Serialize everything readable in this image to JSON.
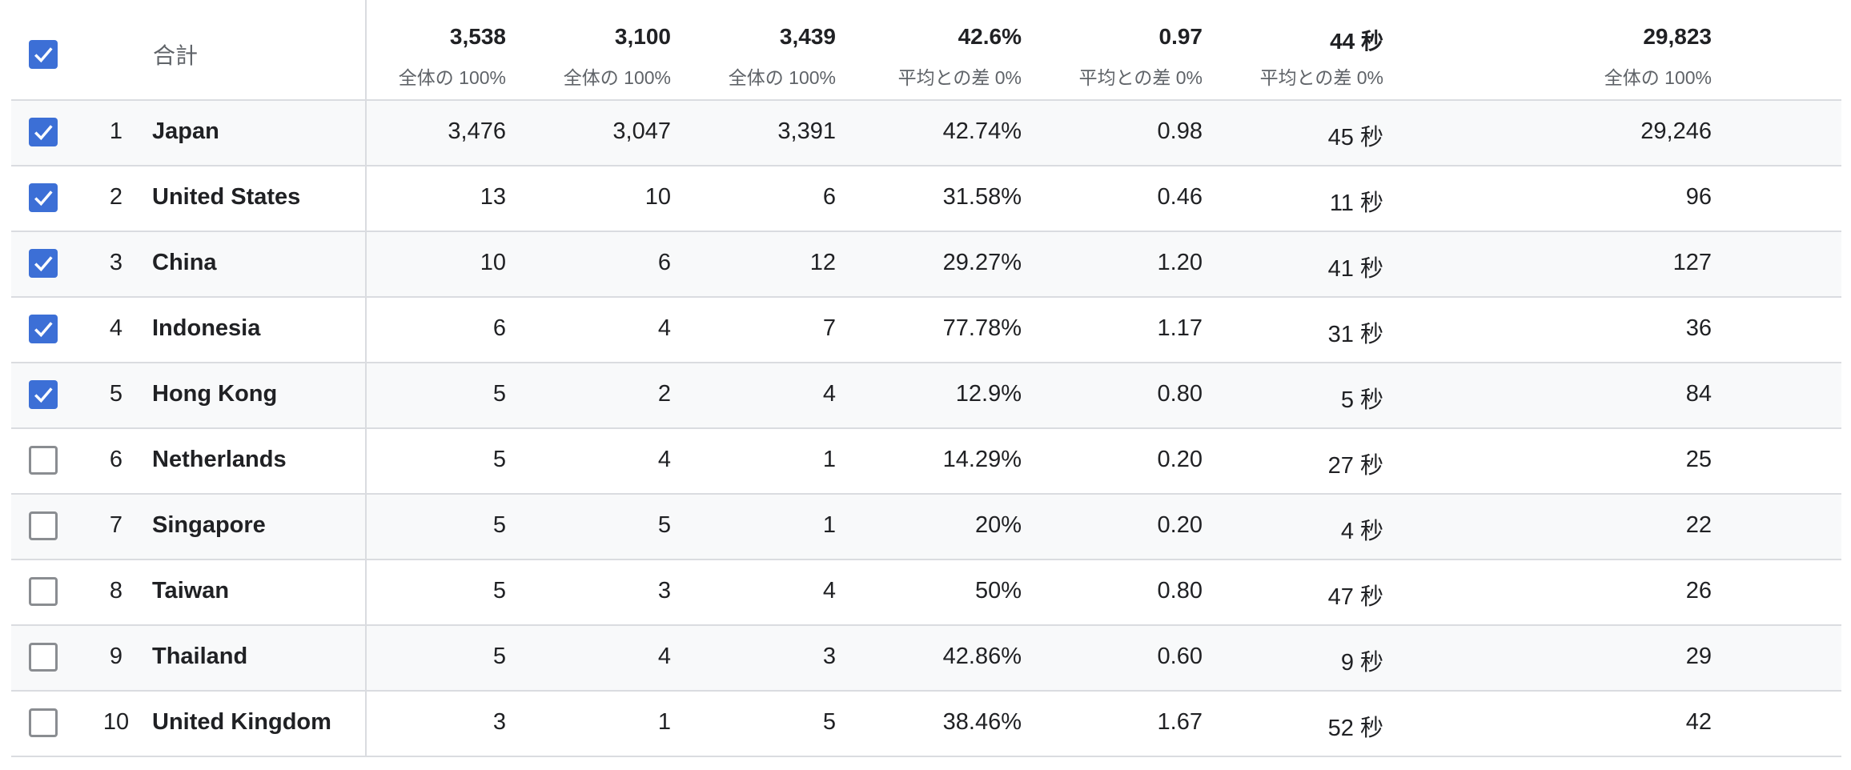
{
  "header": {
    "label": "合計",
    "checked": true,
    "columns": [
      {
        "value": "3,538",
        "sub": "全体の 100%"
      },
      {
        "value": "3,100",
        "sub": "全体の 100%"
      },
      {
        "value": "3,439",
        "sub": "全体の 100%"
      },
      {
        "value": "42.6%",
        "sub": "平均との差 0%"
      },
      {
        "value": "0.97",
        "sub": "平均との差 0%"
      },
      {
        "value": "44 秒",
        "sub": "平均との差 0%"
      },
      {
        "value": "29,823",
        "sub": "全体の 100%"
      }
    ]
  },
  "rows": [
    {
      "rank": "1",
      "country": "Japan",
      "checked": true,
      "values": [
        "3,476",
        "3,047",
        "3,391",
        "42.74%",
        "0.98",
        "45 秒",
        "29,246"
      ]
    },
    {
      "rank": "2",
      "country": "United States",
      "checked": true,
      "values": [
        "13",
        "10",
        "6",
        "31.58%",
        "0.46",
        "11 秒",
        "96"
      ]
    },
    {
      "rank": "3",
      "country": "China",
      "checked": true,
      "values": [
        "10",
        "6",
        "12",
        "29.27%",
        "1.20",
        "41 秒",
        "127"
      ]
    },
    {
      "rank": "4",
      "country": "Indonesia",
      "checked": true,
      "values": [
        "6",
        "4",
        "7",
        "77.78%",
        "1.17",
        "31 秒",
        "36"
      ]
    },
    {
      "rank": "5",
      "country": "Hong Kong",
      "checked": true,
      "values": [
        "5",
        "2",
        "4",
        "12.9%",
        "0.80",
        "5 秒",
        "84"
      ]
    },
    {
      "rank": "6",
      "country": "Netherlands",
      "checked": false,
      "values": [
        "5",
        "4",
        "1",
        "14.29%",
        "0.20",
        "27 秒",
        "25"
      ]
    },
    {
      "rank": "7",
      "country": "Singapore",
      "checked": false,
      "values": [
        "5",
        "5",
        "1",
        "20%",
        "0.20",
        "4 秒",
        "22"
      ]
    },
    {
      "rank": "8",
      "country": "Taiwan",
      "checked": false,
      "values": [
        "5",
        "3",
        "4",
        "50%",
        "0.80",
        "47 秒",
        "26"
      ]
    },
    {
      "rank": "9",
      "country": "Thailand",
      "checked": false,
      "values": [
        "5",
        "4",
        "3",
        "42.86%",
        "0.60",
        "9 秒",
        "29"
      ]
    },
    {
      "rank": "10",
      "country": "United Kingdom",
      "checked": false,
      "values": [
        "3",
        "1",
        "5",
        "38.46%",
        "1.67",
        "52 秒",
        "42"
      ]
    }
  ],
  "colors": {
    "checkbox_checked": "#3c6fd6",
    "row_alt": "#f8f9fa",
    "border": "#dadce0"
  }
}
